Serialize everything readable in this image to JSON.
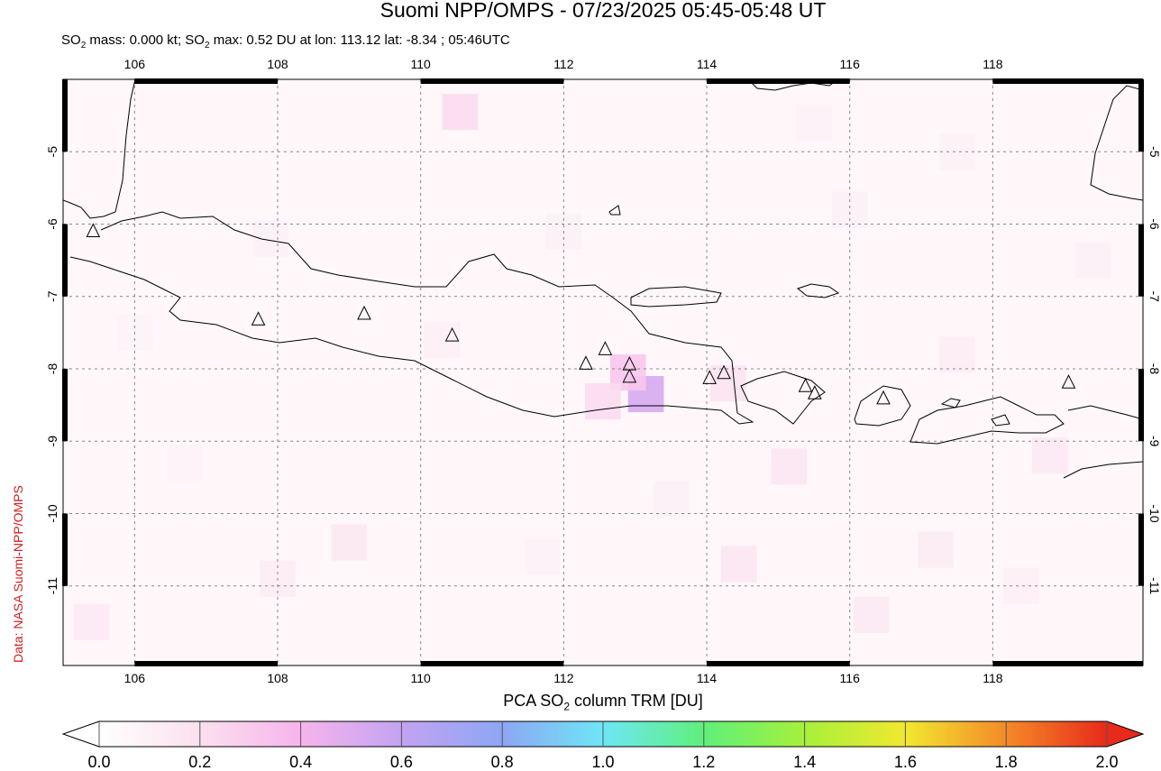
{
  "header": {
    "title": "Suomi NPP/OMPS - 07/23/2025 05:45-05:48 UT",
    "subtitle_pre": "SO",
    "subtitle_sub": "2",
    "subtitle_mid": " mass: 0.000 kt; SO",
    "subtitle_sub2": "2",
    "subtitle_post": " max: 0.52 DU at lon: 113.12 lat: -8.34 ; 05:46UTC"
  },
  "credit": "Data: NASA Suomi-NPP/OMPS",
  "colorbar": {
    "title_pre": "PCA SO",
    "title_sub": "2",
    "title_post": " column TRM [DU]",
    "ticks": [
      "0.0",
      "0.2",
      "0.4",
      "0.6",
      "0.8",
      "1.0",
      "1.2",
      "1.4",
      "1.6",
      "1.8",
      "2.0"
    ],
    "colors": [
      "#ffffff",
      "#fbe0ee",
      "#f6b4ec",
      "#c3a3f2",
      "#8da6f4",
      "#6ee6f6",
      "#5ef07a",
      "#a6f03a",
      "#f2e830",
      "#f48a28",
      "#e82a1a"
    ]
  },
  "chart_data": {
    "type": "heatmap",
    "title": "Suomi NPP/OMPS - 07/23/2025 05:45-05:48 UT",
    "xlim": [
      105.0,
      120.1
    ],
    "ylim": [
      -12.1,
      -4.0
    ],
    "x_ticks": [
      "106",
      "108",
      "110",
      "112",
      "114",
      "116",
      "118"
    ],
    "y_ticks": [
      "-5",
      "-6",
      "-7",
      "-8",
      "-9",
      "-10",
      "-11"
    ],
    "colorbar_range": [
      0.0,
      2.0
    ],
    "max_value": {
      "value": 0.52,
      "lon": 113.12,
      "lat": -8.34
    },
    "volcanoes": [
      {
        "lon": 105.42,
        "lat": -6.1
      },
      {
        "lon": 107.73,
        "lat": -7.32
      },
      {
        "lon": 109.21,
        "lat": -7.24
      },
      {
        "lon": 110.44,
        "lat": -7.54
      },
      {
        "lon": 112.31,
        "lat": -7.93
      },
      {
        "lon": 112.58,
        "lat": -7.73
      },
      {
        "lon": 112.92,
        "lat": -7.94
      },
      {
        "lon": 112.92,
        "lat": -8.11
      },
      {
        "lon": 114.04,
        "lat": -8.13
      },
      {
        "lon": 114.24,
        "lat": -8.06
      },
      {
        "lon": 115.38,
        "lat": -8.24
      },
      {
        "lon": 115.51,
        "lat": -8.34
      },
      {
        "lon": 116.47,
        "lat": -8.41
      },
      {
        "lon": 119.06,
        "lat": -8.19
      }
    ],
    "so2_cells": [
      {
        "lon": 113.15,
        "lat": -8.35,
        "value": 0.52
      },
      {
        "lon": 112.9,
        "lat": -8.05,
        "value": 0.32
      },
      {
        "lon": 112.55,
        "lat": -8.45,
        "value": 0.22
      },
      {
        "lon": 110.55,
        "lat": -4.45,
        "value": 0.22
      },
      {
        "lon": 114.3,
        "lat": -8.2,
        "value": 0.18
      },
      {
        "lon": 115.15,
        "lat": -9.35,
        "value": 0.16
      },
      {
        "lon": 114.45,
        "lat": -10.7,
        "value": 0.16
      },
      {
        "lon": 109.0,
        "lat": -10.4,
        "value": 0.15
      },
      {
        "lon": 105.4,
        "lat": -11.5,
        "value": 0.14
      },
      {
        "lon": 118.8,
        "lat": -9.2,
        "value": 0.14
      },
      {
        "lon": 116.3,
        "lat": -11.4,
        "value": 0.14
      },
      {
        "lon": 117.2,
        "lat": -10.5,
        "value": 0.13
      },
      {
        "lon": 108.0,
        "lat": -10.9,
        "value": 0.12
      },
      {
        "lon": 117.5,
        "lat": -7.8,
        "value": 0.12
      },
      {
        "lon": 110.3,
        "lat": -7.6,
        "value": 0.11
      },
      {
        "lon": 112.0,
        "lat": -6.1,
        "value": 0.1
      },
      {
        "lon": 107.9,
        "lat": -6.2,
        "value": 0.1
      },
      {
        "lon": 116.0,
        "lat": -5.8,
        "value": 0.1
      },
      {
        "lon": 117.5,
        "lat": -5.0,
        "value": 0.09
      },
      {
        "lon": 106.7,
        "lat": -9.3,
        "value": 0.08
      },
      {
        "lon": 113.5,
        "lat": -9.8,
        "value": 0.1
      },
      {
        "lon": 111.7,
        "lat": -10.6,
        "value": 0.09
      },
      {
        "lon": 119.4,
        "lat": -6.5,
        "value": 0.1
      },
      {
        "lon": 118.4,
        "lat": -11.0,
        "value": 0.11
      },
      {
        "lon": 115.5,
        "lat": -4.6,
        "value": 0.09
      },
      {
        "lon": 106.0,
        "lat": -7.5,
        "value": 0.08
      }
    ]
  }
}
